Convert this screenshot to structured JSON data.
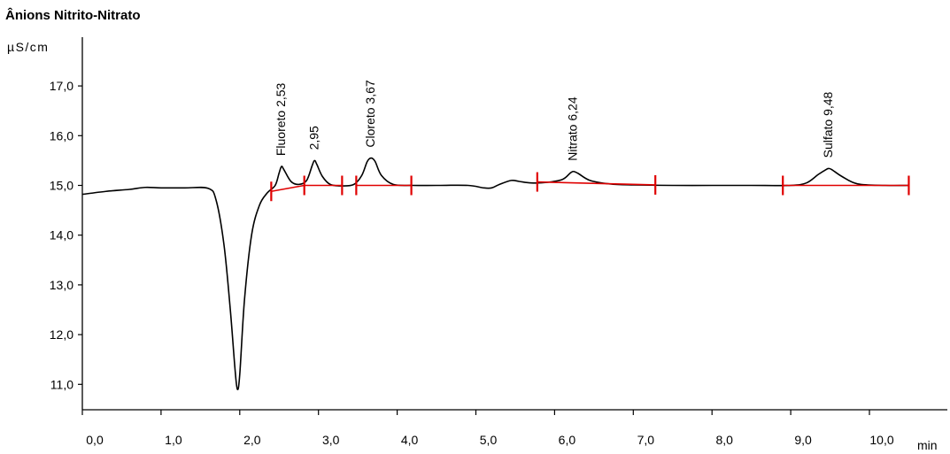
{
  "chart_data": {
    "type": "line",
    "title": "Ânions Nitrito-Nitrato",
    "ylabel": "µS/cm",
    "xlabel": "min",
    "xlim": [
      0,
      10.5
    ],
    "ylim": [
      10.6,
      17.6
    ],
    "x_ticks": [
      0.0,
      1.0,
      2.0,
      3.0,
      4.0,
      5.0,
      6.0,
      7.0,
      8.0,
      9.0,
      10.0
    ],
    "x_tick_labels": [
      "0,0",
      "1,0",
      "2,0",
      "3,0",
      "4,0",
      "5,0",
      "6,0",
      "7,0",
      "8,0",
      "9,0",
      "10,0"
    ],
    "y_ticks": [
      11.0,
      12.0,
      13.0,
      14.0,
      15.0,
      16.0,
      17.0
    ],
    "y_tick_labels": [
      "11,0",
      "12,0",
      "13,0",
      "14,0",
      "15,0",
      "16,0",
      "17,0"
    ],
    "grid": false,
    "colors": {
      "signal": "#000000",
      "baseline": "#e00000",
      "axis": "#000000"
    },
    "signal": {
      "x": [
        0.0,
        0.3,
        0.6,
        0.8,
        1.0,
        1.3,
        1.6,
        1.7,
        1.8,
        1.88,
        1.94,
        1.97,
        2.0,
        2.06,
        2.15,
        2.25,
        2.35,
        2.45,
        2.5,
        2.53,
        2.56,
        2.65,
        2.75,
        2.85,
        2.92,
        2.95,
        2.98,
        3.05,
        3.15,
        3.3,
        3.45,
        3.55,
        3.62,
        3.67,
        3.72,
        3.8,
        3.95,
        4.2,
        4.5,
        4.9,
        5.1,
        5.2,
        5.3,
        5.45,
        5.55,
        5.7,
        5.9,
        6.1,
        6.2,
        6.24,
        6.3,
        6.45,
        6.7,
        7.0,
        7.5,
        8.0,
        8.5,
        9.0,
        9.2,
        9.35,
        9.45,
        9.48,
        9.52,
        9.65,
        9.85,
        10.2,
        10.5
      ],
      "y": [
        14.82,
        14.88,
        14.92,
        14.96,
        14.95,
        14.95,
        14.94,
        14.7,
        13.8,
        12.5,
        11.3,
        10.9,
        11.2,
        12.7,
        14.0,
        14.6,
        14.85,
        15.0,
        15.25,
        15.38,
        15.32,
        15.08,
        15.02,
        15.1,
        15.4,
        15.5,
        15.42,
        15.18,
        15.02,
        14.99,
        15.02,
        15.2,
        15.48,
        15.55,
        15.48,
        15.2,
        15.02,
        15.0,
        15.0,
        15.0,
        14.95,
        14.95,
        15.02,
        15.1,
        15.08,
        15.05,
        15.06,
        15.12,
        15.25,
        15.28,
        15.24,
        15.1,
        15.03,
        15.01,
        15.0,
        15.0,
        15.0,
        15.0,
        15.05,
        15.22,
        15.32,
        15.34,
        15.32,
        15.18,
        15.03,
        15.0,
        15.0
      ]
    },
    "baseline_segments": [
      {
        "x": [
          2.4,
          2.82
        ],
        "y": [
          14.88,
          15.0
        ]
      },
      {
        "x": [
          2.82,
          3.3
        ],
        "y": [
          15.0,
          15.0
        ]
      },
      {
        "x": [
          3.48,
          4.18
        ],
        "y": [
          15.0,
          15.0
        ]
      },
      {
        "x": [
          5.78,
          7.28
        ],
        "y": [
          15.07,
          15.01
        ]
      },
      {
        "x": [
          8.9,
          10.5
        ],
        "y": [
          15.0,
          15.0
        ]
      }
    ],
    "integration_markers": [
      {
        "x": 2.4,
        "y": 14.88
      },
      {
        "x": 2.82,
        "y": 15.0
      },
      {
        "x": 3.3,
        "y": 15.0
      },
      {
        "x": 3.48,
        "y": 15.0
      },
      {
        "x": 4.18,
        "y": 15.0
      },
      {
        "x": 5.78,
        "y": 15.07
      },
      {
        "x": 7.28,
        "y": 15.01
      },
      {
        "x": 8.9,
        "y": 15.0
      },
      {
        "x": 10.5,
        "y": 15.0
      }
    ],
    "peaks": [
      {
        "label": "Fluoreto 2,53",
        "x": 2.53,
        "y": 15.38
      },
      {
        "label": "2,95",
        "x": 2.95,
        "y": 15.5
      },
      {
        "label": "Cloreto 3,67",
        "x": 3.67,
        "y": 15.55
      },
      {
        "label": "Nitrato 6,24",
        "x": 6.24,
        "y": 15.28
      },
      {
        "label": "Sulfato 9,48",
        "x": 9.48,
        "y": 15.34
      }
    ]
  }
}
